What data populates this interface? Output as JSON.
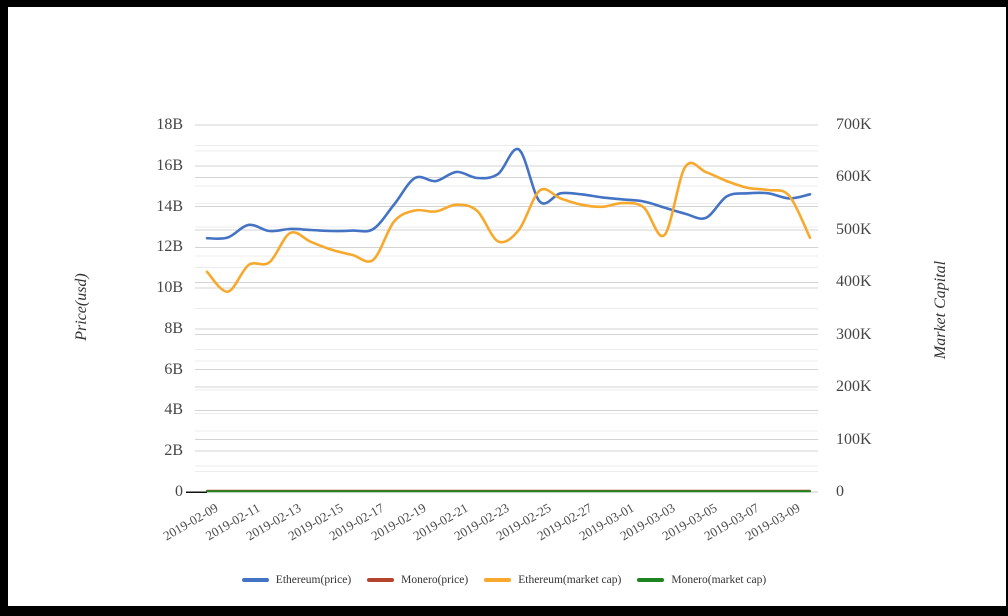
{
  "page": {
    "background": "#ffffff",
    "frame_color": "#000000"
  },
  "chart_data": {
    "type": "line",
    "smooth": true,
    "x": [
      "2019-02-09",
      "2019-02-10",
      "2019-02-11",
      "2019-02-12",
      "2019-02-13",
      "2019-02-14",
      "2019-02-15",
      "2019-02-16",
      "2019-02-17",
      "2019-02-18",
      "2019-02-19",
      "2019-02-20",
      "2019-02-21",
      "2019-02-22",
      "2019-02-23",
      "2019-02-24",
      "2019-02-25",
      "2019-02-26",
      "2019-02-27",
      "2019-02-28",
      "2019-03-01",
      "2019-03-02",
      "2019-03-03",
      "2019-03-04",
      "2019-03-05",
      "2019-03-06",
      "2019-03-07",
      "2019-03-08",
      "2019-03-09",
      "2019-03-10"
    ],
    "x_axis": {
      "tick_labels": [
        "2019-02-09",
        "2019-02-11",
        "2019-02-13",
        "2019-02-15",
        "2019-02-17",
        "2019-02-19",
        "2019-02-21",
        "2019-02-23",
        "2019-02-25",
        "2019-02-27",
        "2019-03-01",
        "2019-03-03",
        "2019-03-05",
        "2019-03-07",
        "2019-03-09"
      ],
      "label_rotation_deg": 30
    },
    "y_axis_left": {
      "title": "Price(usd)",
      "unit": "B",
      "min": 0,
      "max": 18,
      "major_step": 2,
      "minor_step": 1,
      "tick_labels": [
        "0",
        "2B",
        "4B",
        "6B",
        "8B",
        "10B",
        "12B",
        "14B",
        "16B",
        "18B"
      ]
    },
    "y_axis_right": {
      "title": "Market Capital",
      "unit": "K",
      "min": 0,
      "max": 700,
      "major_step": 100,
      "minor_step": 50,
      "tick_labels": [
        "0",
        "100K",
        "200K",
        "300K",
        "400K",
        "500K",
        "600K",
        "700K"
      ]
    },
    "grid": {
      "show": true,
      "major_color": "#d3d3d3",
      "minor_color": "#ececec"
    },
    "series": [
      {
        "name": "Ethereum(price)",
        "axis": "left",
        "color": "#4573c4",
        "width": 2.6,
        "values": [
          12.45,
          12.48,
          13.1,
          12.8,
          12.9,
          12.85,
          12.8,
          12.82,
          12.9,
          14.1,
          15.4,
          15.25,
          15.7,
          15.4,
          15.6,
          16.8,
          14.25,
          14.65,
          14.6,
          14.45,
          14.35,
          14.25,
          13.95,
          13.65,
          13.45,
          14.5,
          14.65,
          14.65,
          14.4,
          14.6
        ]
      },
      {
        "name": "Monero(price)",
        "axis": "left",
        "color": "#b5442d",
        "width": 2,
        "values": [
          0.06,
          0.06,
          0.06,
          0.06,
          0.06,
          0.06,
          0.06,
          0.06,
          0.06,
          0.06,
          0.06,
          0.06,
          0.06,
          0.06,
          0.06,
          0.06,
          0.06,
          0.06,
          0.06,
          0.06,
          0.06,
          0.06,
          0.06,
          0.06,
          0.06,
          0.06,
          0.06,
          0.06,
          0.06,
          0.06
        ]
      },
      {
        "name": "Ethereum(market cap)",
        "axis": "right",
        "color": "#f7a82d",
        "width": 2.6,
        "values": [
          420,
          382,
          433,
          438,
          494,
          477,
          462,
          452,
          443,
          516,
          537,
          535,
          548,
          536,
          478,
          500,
          575,
          560,
          548,
          544,
          551,
          543,
          490,
          620,
          610,
          593,
          580,
          576,
          565,
          485
        ]
      },
      {
        "name": "Monero(market cap)",
        "axis": "right",
        "color": "#1e8420",
        "width": 2,
        "values": [
          1.5,
          1.5,
          1.5,
          1.5,
          1.5,
          1.5,
          1.5,
          1.5,
          1.5,
          1.5,
          1.5,
          1.5,
          1.5,
          1.5,
          1.5,
          1.5,
          1.5,
          1.5,
          1.5,
          1.5,
          1.5,
          1.5,
          1.5,
          1.5,
          1.5,
          1.5,
          1.5,
          1.5,
          1.5,
          1.5
        ]
      }
    ],
    "legend": {
      "position": "bottom",
      "items": [
        "Ethereum(price)",
        "Monero(price)",
        "Ethereum(market cap)",
        "Monero(market cap)"
      ]
    }
  }
}
